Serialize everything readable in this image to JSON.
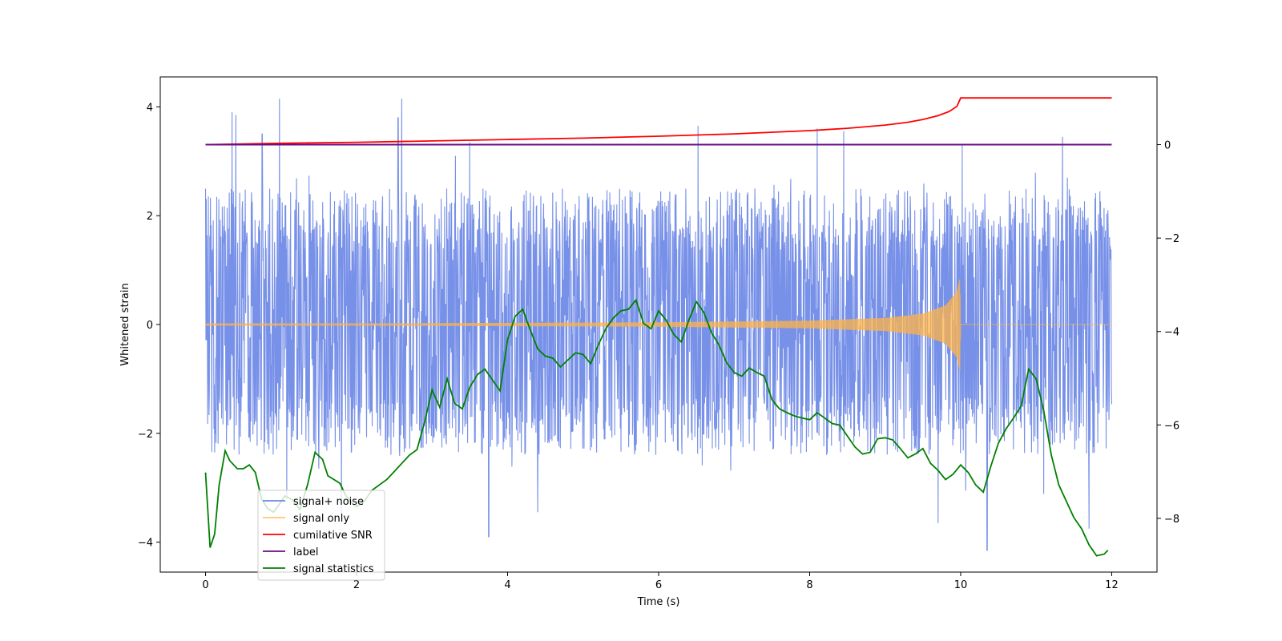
{
  "chart_data": {
    "type": "line",
    "xlabel": "Time (s)",
    "ylabel": "Whitened strain",
    "ylabel_right": "",
    "xlim": [
      -0.6,
      12.6
    ],
    "ylim": [
      -4.55,
      4.55
    ],
    "ylim_right": [
      -9.15,
      1.45
    ],
    "x_ticks": [
      0,
      2,
      4,
      6,
      8,
      10,
      12
    ],
    "x_tick_labels": [
      "0",
      "2",
      "4",
      "6",
      "8",
      "10",
      "12"
    ],
    "y_ticks": [
      4,
      2,
      0,
      -2,
      -4
    ],
    "y_tick_labels": [
      "4",
      "2",
      "0",
      "−2",
      "−4"
    ],
    "y2_ticks": [
      0,
      -2,
      -4,
      -6,
      -8
    ],
    "y2_tick_labels": [
      "0",
      "−2",
      "−4",
      "−6",
      "−8"
    ],
    "grid": false,
    "legend_position": "lower-left",
    "series": [
      {
        "name": "signal+ noise",
        "axis": "left",
        "color": "#6b87e6",
        "x_range": [
          0,
          12
        ],
        "baseline": 0.1,
        "typical_envelope": [
          -2.4,
          2.5
        ],
        "peaks": [
          {
            "x": 0.35,
            "y": 3.9
          },
          {
            "x": 0.4,
            "y": 3.85
          },
          {
            "x": 0.75,
            "y": 3.5
          },
          {
            "x": 0.98,
            "y": 4.15
          },
          {
            "x": 2.55,
            "y": 3.8
          },
          {
            "x": 2.6,
            "y": 4.15
          },
          {
            "x": 3.5,
            "y": 3.35
          },
          {
            "x": 6.52,
            "y": 3.65
          },
          {
            "x": 8.1,
            "y": 3.6
          },
          {
            "x": 8.45,
            "y": 3.55
          },
          {
            "x": 10.02,
            "y": 3.3
          },
          {
            "x": 11.35,
            "y": 3.45
          },
          {
            "x": 3.75,
            "y": -3.9
          },
          {
            "x": 4.4,
            "y": -3.45
          },
          {
            "x": 10.35,
            "y": -4.15
          },
          {
            "x": 11.7,
            "y": -3.75
          },
          {
            "x": 9.7,
            "y": -3.65
          },
          {
            "x": 1.8,
            "y": -3.5
          }
        ]
      },
      {
        "name": "signal only",
        "axis": "left",
        "color": "#ffb347",
        "x": [
          0,
          2,
          4,
          6,
          8,
          9,
          9.5,
          9.8,
          9.95,
          9.99,
          10.0,
          12.0
        ],
        "amplitude": [
          0.02,
          0.02,
          0.03,
          0.04,
          0.07,
          0.12,
          0.2,
          0.35,
          0.6,
          0.85,
          0.0,
          0.0
        ]
      },
      {
        "name": "cumilative SNR",
        "axis": "right",
        "color": "#ff0000",
        "x": [
          0,
          1,
          2,
          3,
          4,
          5,
          6,
          7,
          8,
          8.5,
          9,
          9.3,
          9.5,
          9.7,
          9.85,
          9.95,
          10.0,
          12.0
        ],
        "values": [
          0,
          0.03,
          0.05,
          0.08,
          0.11,
          0.14,
          0.18,
          0.23,
          0.3,
          0.35,
          0.42,
          0.48,
          0.54,
          0.62,
          0.71,
          0.82,
          1.0,
          1.0
        ]
      },
      {
        "name": "label",
        "axis": "right",
        "color": "#6a0d83",
        "x": [
          0,
          12
        ],
        "values": [
          0,
          0
        ]
      },
      {
        "name": "signal statistics",
        "axis": "left",
        "color": "#008000",
        "x": [
          0.0,
          0.06,
          0.12,
          0.18,
          0.26,
          0.32,
          0.42,
          0.5,
          0.58,
          0.66,
          0.74,
          0.82,
          0.9,
          0.98,
          1.05,
          1.15,
          1.25,
          1.35,
          1.45,
          1.55,
          1.62,
          1.7,
          1.78,
          1.86,
          1.94,
          2.0,
          2.1,
          2.2,
          2.3,
          2.4,
          2.5,
          2.6,
          2.7,
          2.8,
          2.9,
          3.0,
          3.1,
          3.2,
          3.3,
          3.4,
          3.5,
          3.6,
          3.7,
          3.8,
          3.9,
          4.0,
          4.1,
          4.2,
          4.3,
          4.4,
          4.5,
          4.6,
          4.7,
          4.8,
          4.9,
          5.0,
          5.1,
          5.2,
          5.3,
          5.4,
          5.5,
          5.6,
          5.7,
          5.8,
          5.9,
          6.0,
          6.1,
          6.2,
          6.3,
          6.4,
          6.5,
          6.6,
          6.7,
          6.8,
          6.9,
          7.0,
          7.1,
          7.2,
          7.3,
          7.4,
          7.5,
          7.6,
          7.7,
          7.8,
          7.9,
          8.0,
          8.1,
          8.2,
          8.3,
          8.4,
          8.5,
          8.6,
          8.7,
          8.8,
          8.9,
          9.0,
          9.1,
          9.2,
          9.3,
          9.4,
          9.5,
          9.6,
          9.7,
          9.8,
          9.9,
          10.0,
          10.1,
          10.2,
          10.3,
          10.4,
          10.5,
          10.6,
          10.7,
          10.8,
          10.9,
          11.0,
          11.1,
          11.2,
          11.3,
          11.4,
          11.5,
          11.6,
          11.7,
          11.8,
          11.9,
          11.95
        ],
        "values": [
          -2.72,
          -4.1,
          -3.85,
          -2.95,
          -2.32,
          -2.5,
          -2.65,
          -2.65,
          -2.58,
          -2.72,
          -3.2,
          -3.38,
          -3.45,
          -3.3,
          -3.15,
          -3.22,
          -3.4,
          -2.95,
          -2.35,
          -2.48,
          -2.78,
          -2.85,
          -2.92,
          -3.15,
          -3.28,
          -3.35,
          -3.25,
          -3.05,
          -2.95,
          -2.85,
          -2.7,
          -2.55,
          -2.4,
          -2.3,
          -1.8,
          -1.2,
          -1.52,
          -1.0,
          -1.45,
          -1.55,
          -1.15,
          -0.92,
          -0.82,
          -1.02,
          -1.22,
          -0.28,
          0.15,
          0.28,
          -0.1,
          -0.45,
          -0.58,
          -0.62,
          -0.78,
          -0.65,
          -0.52,
          -0.55,
          -0.72,
          -0.38,
          -0.08,
          0.12,
          0.25,
          0.28,
          0.45,
          0.02,
          -0.08,
          0.25,
          0.08,
          -0.18,
          -0.32,
          0.08,
          0.42,
          0.22,
          -0.15,
          -0.38,
          -0.7,
          -0.88,
          -0.95,
          -0.8,
          -0.88,
          -0.95,
          -1.38,
          -1.55,
          -1.62,
          -1.68,
          -1.72,
          -1.75,
          -1.62,
          -1.72,
          -1.82,
          -1.85,
          -2.05,
          -2.25,
          -2.38,
          -2.35,
          -2.1,
          -2.08,
          -2.12,
          -2.28,
          -2.45,
          -2.38,
          -2.28,
          -2.55,
          -2.68,
          -2.85,
          -2.75,
          -2.58,
          -2.72,
          -2.95,
          -3.08,
          -2.6,
          -2.18,
          -1.92,
          -1.72,
          -1.5,
          -0.82,
          -1.0,
          -1.58,
          -2.4,
          -2.95,
          -3.25,
          -3.55,
          -3.75,
          -4.05,
          -4.25,
          -4.22,
          -4.15
        ]
      }
    ]
  }
}
